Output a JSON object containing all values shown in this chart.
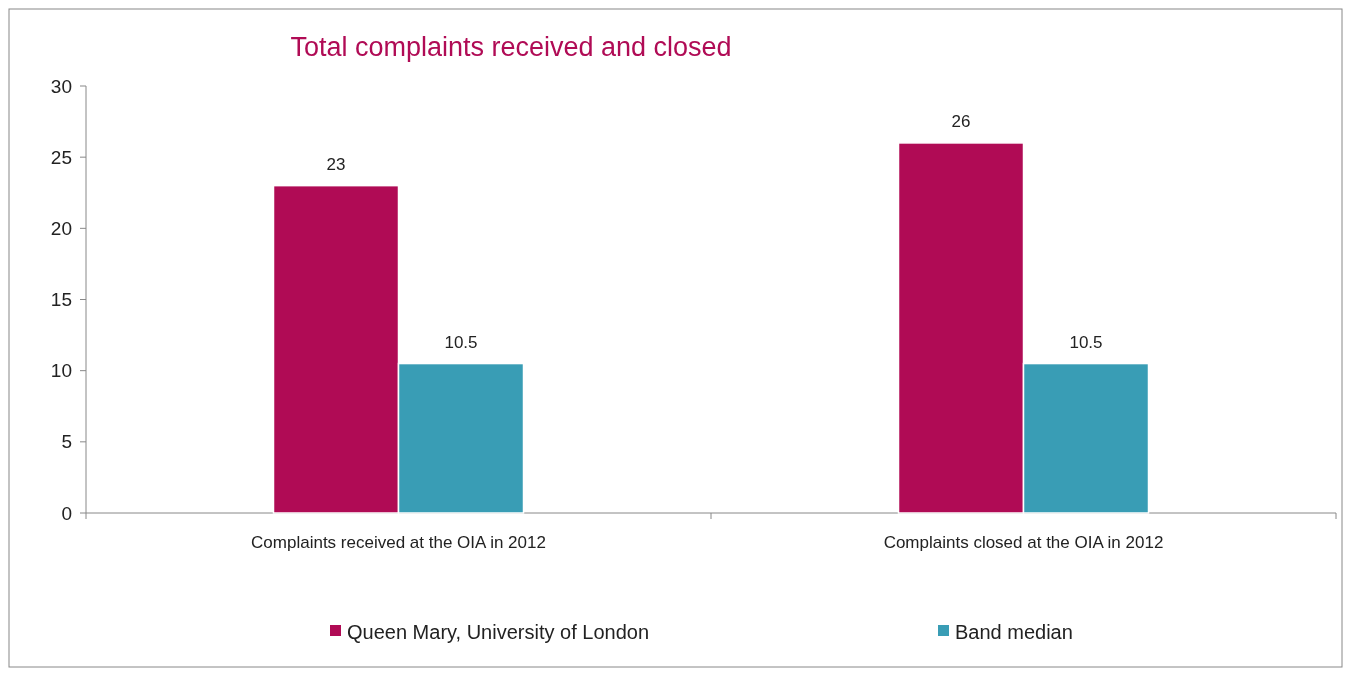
{
  "chart_data": {
    "type": "bar",
    "title": "Total complaints received and closed",
    "categories": [
      "Complaints received at the OIA in 2012",
      "Complaints closed at the OIA in 2012"
    ],
    "series": [
      {
        "name": "Queen Mary, University of London",
        "color": "#b00b55",
        "values": [
          23,
          26
        ]
      },
      {
        "name": "Band median",
        "color": "#399db5",
        "values": [
          10.5,
          10.5
        ]
      }
    ],
    "ylim": [
      0,
      30
    ],
    "yticks": [
      0,
      5,
      10,
      15,
      20,
      25,
      30
    ],
    "grid": false,
    "legend": "bottom",
    "data_labels": true
  }
}
